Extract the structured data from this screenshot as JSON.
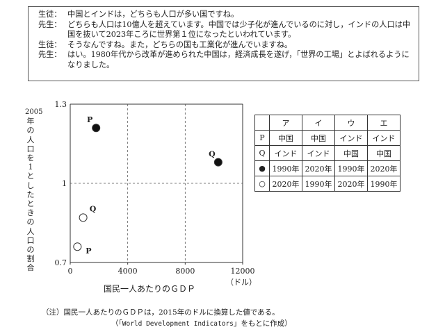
{
  "dialogue": [
    {
      "speaker": "生徒：",
      "text": "中国とインドは，どちらも人口が多い国ですね。"
    },
    {
      "speaker": "先生：",
      "text": "どちらも人口は10億人を超えています。中国では少子化が進んでいるのに対し，インドの人口は中国を抜いて2023年ころに世界第１位になったといわれています。"
    },
    {
      "speaker": "生徒：",
      "text": "そうなんですね。また，どちらの国も工業化が進んでいますね。"
    },
    {
      "speaker": "先生：",
      "text": "はい。1980年代から改革が進められた中国は，経済成長を遂げ，「世界の工場」とよばれるようになりました。"
    }
  ],
  "chart_data": {
    "type": "scatter",
    "ylabel": "2005年の人口を1としたときの人口の割合",
    "xlabel": "国民一人あたりのＧＤＰ",
    "x_unit": "（ドル）",
    "xlim": [
      0,
      12000
    ],
    "ylim": [
      0.7,
      1.3
    ],
    "x_ticks": [
      "0",
      "4000",
      "8000",
      "12000"
    ],
    "y_ticks": [
      "0.7",
      "1",
      "1.3"
    ],
    "grid": "dashed at 4000, 8000 and 1",
    "points": [
      {
        "label": "P",
        "fill": "black",
        "x": 1800,
        "y": 1.21
      },
      {
        "label": "Q",
        "fill": "black",
        "x": 10300,
        "y": 1.08
      },
      {
        "label": "Q",
        "fill": "white",
        "x": 900,
        "y": 0.87
      },
      {
        "label": "P",
        "fill": "white",
        "x": 500,
        "y": 0.76
      }
    ]
  },
  "table": {
    "header": [
      "",
      "ア",
      "イ",
      "ウ",
      "エ"
    ],
    "rows": [
      [
        "P",
        "中国",
        "中国",
        "インド",
        "インド"
      ],
      [
        "Q",
        "インド",
        "インド",
        "中国",
        "中国"
      ],
      [
        "●",
        "1990年",
        "2020年",
        "1990年",
        "2020年"
      ],
      [
        "○",
        "2020年",
        "1990年",
        "2020年",
        "1990年"
      ]
    ]
  },
  "note": "（注）国民一人あたりのＧＤＰは，2015年のドルに換算した値である。",
  "source_prefix": "（「",
  "source_name": "World Development Indicators",
  "source_suffix": "」をもとに作成）"
}
